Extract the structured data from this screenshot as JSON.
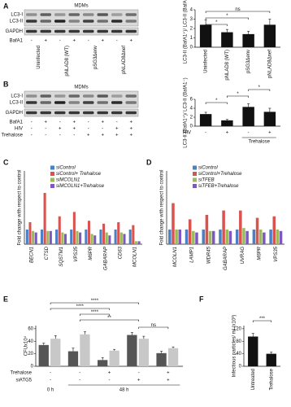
{
  "panel_labels": [
    "A",
    "B",
    "C",
    "D",
    "E",
    "F"
  ],
  "blots": [
    {
      "title": "MDMs",
      "rows": [
        "LC3-I",
        "LC3-II",
        "GAPDH"
      ],
      "conditions": [
        {
          "name": "BafA1",
          "marks": [
            "-",
            "+",
            "-",
            "+",
            "-",
            "+",
            "-",
            "+"
          ]
        }
      ],
      "lanes": [
        "Uninfected",
        "pNLAD8 (WT)",
        "pSG3Δenv",
        "pNLAD8Δnef"
      ]
    },
    {
      "title": "MDMs",
      "rows": [
        "LC3-I",
        "LC3-II",
        "GAPDH"
      ],
      "conditions": [
        {
          "name": "BafA1",
          "marks": [
            "-",
            "+",
            "-",
            "+",
            "-",
            "+",
            "-",
            "+"
          ]
        },
        {
          "name": "HIV",
          "marks": [
            "-",
            "-",
            "+",
            "+",
            "-",
            "-",
            "+",
            "+"
          ]
        },
        {
          "name": "Trehalose",
          "marks": [
            "-",
            "-",
            "-",
            "-",
            "+",
            "+",
            "+",
            "+"
          ]
        }
      ]
    }
  ],
  "chart_data": [
    {
      "type": "bar",
      "y_label": "LC3-II (BafA1⁺)/ LC3-II (BafA1⁻)",
      "categories": [
        "Uninfected",
        "pNLAD8 (WT)",
        "pSG3Δenv",
        "pNLAD8Δnef"
      ],
      "values": [
        2.4,
        1.6,
        1.4,
        2.4
      ],
      "errors": [
        0.5,
        0.3,
        0.3,
        0.6
      ],
      "color": "#111111",
      "ylim": [
        0,
        4
      ],
      "yticks": [
        0,
        1,
        2,
        3,
        4
      ],
      "significance": [
        "*",
        "*",
        "ns"
      ]
    },
    {
      "type": "bar",
      "y_label": "LC3-II (BafA1⁺)/ LC3-II (BafA1⁻)",
      "categories": [
        null,
        null,
        null,
        null
      ],
      "conditions": [
        {
          "name": "HIV",
          "marks": [
            "-",
            "+",
            "-",
            "+"
          ]
        }
      ],
      "bracket_label": "Trehalose",
      "values": [
        2.7,
        1.3,
        4.3,
        3.2
      ],
      "errors": [
        0.4,
        0.2,
        0.7,
        0.8
      ],
      "color": "#111111",
      "ylim": [
        0,
        6
      ],
      "yticks": [
        0,
        2,
        4,
        6
      ],
      "significance": [
        "*",
        "*",
        "*"
      ]
    },
    {
      "type": "grouped_bar",
      "y_label": "Fold change with respect to control",
      "legend": "top",
      "categories": [
        "BECN1",
        "CTSD",
        "SQSTM1",
        "VPS35",
        "M6PR",
        "GABARAP",
        "CD63",
        "MCOLN1"
      ],
      "series": [
        {
          "name": "siControl",
          "color": "#4a80c4",
          "values": [
            1.0,
            1.0,
            1.0,
            1.0,
            1.0,
            1.0,
            1.0,
            1.0
          ]
        },
        {
          "name": "siControl+ Trehalose",
          "color": "#d9534f",
          "values": [
            1.5,
            3.5,
            1.9,
            2.2,
            1.6,
            1.4,
            1.5,
            1.3
          ]
        },
        {
          "name": "siMCOLN1",
          "color": "#9bbb59",
          "values": [
            0.9,
            0.9,
            0.8,
            0.9,
            0.7,
            0.8,
            0.8,
            0.2
          ]
        },
        {
          "name": "siMCOLN1+Trehalose",
          "color": "#7e57c2",
          "values": [
            0.8,
            0.9,
            0.7,
            0.8,
            0.6,
            0.6,
            0.7,
            0.2
          ]
        }
      ],
      "ylim": [
        0,
        5
      ]
    },
    {
      "type": "grouped_bar",
      "y_label": "Fold change with respect to control",
      "legend": "top",
      "categories": [
        "MCOLN1",
        "LAMP1",
        "WDR45",
        "GABARAP",
        "UVRAG",
        "M6PR",
        "VPS35"
      ],
      "series": [
        {
          "name": "siControl",
          "color": "#4a80c4",
          "values": [
            1.0,
            1.0,
            1.0,
            1.0,
            1.0,
            1.0,
            1.0
          ]
        },
        {
          "name": "siControl+Trehalose",
          "color": "#d9534f",
          "values": [
            2.8,
            1.7,
            2.0,
            2.3,
            2.3,
            1.8,
            1.9
          ]
        },
        {
          "name": "siTFEB",
          "color": "#9bbb59",
          "values": [
            1.0,
            0.9,
            0.9,
            1.0,
            1.1,
            1.0,
            1.0
          ]
        },
        {
          "name": "siTFEB+Trehalose",
          "color": "#7e57c2",
          "values": [
            1.0,
            0.8,
            0.9,
            0.9,
            0.9,
            0.8,
            0.9
          ]
        }
      ],
      "ylim": [
        0,
        5
      ]
    },
    {
      "type": "grouped_bar",
      "y_label": "CFUx10⁴",
      "categories": [
        null,
        null,
        null,
        null,
        null
      ],
      "series": [
        {
          "color": "#555555",
          "values": [
            34,
            24,
            10,
            50,
            21
          ],
          "errors": [
            3,
            5,
            4,
            4,
            3
          ]
        },
        {
          "color": "#c8c8c8",
          "values": [
            44,
            51,
            25,
            44,
            29
          ],
          "errors": [
            5,
            4,
            2,
            4,
            2
          ]
        }
      ],
      "conditions": [
        {
          "name": "Trehalose",
          "marks": [
            "-",
            "-",
            "+",
            "-",
            "+"
          ]
        },
        {
          "name": "siATG5",
          "marks": [
            "-",
            "-",
            "-",
            "+",
            "+"
          ]
        }
      ],
      "group_labels": [
        "0 h",
        "48 h"
      ],
      "ylim": [
        0,
        65
      ],
      "yticks": [
        0,
        20,
        40,
        60
      ],
      "significance": [
        "****",
        "****",
        "****",
        "**",
        "ns"
      ]
    },
    {
      "type": "bar",
      "y_label": "Infectious particles/ ml (x10³)",
      "categories": [
        "Untreated",
        "Trehalose"
      ],
      "values": [
        95,
        40
      ],
      "errors": [
        10,
        5
      ],
      "color": "#111111",
      "ylim": [
        0,
        130
      ],
      "yticks": [
        0,
        40,
        80,
        120
      ],
      "significance": [
        "***"
      ]
    }
  ]
}
